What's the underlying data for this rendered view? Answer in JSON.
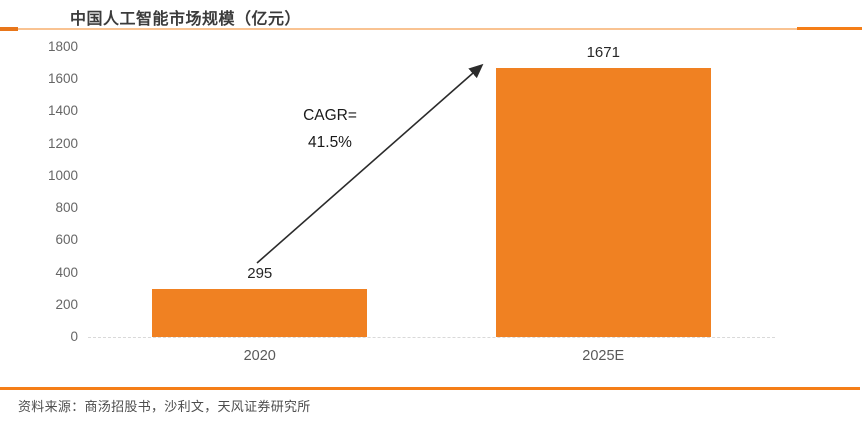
{
  "header": {
    "title": "中国人工智能市场规模（亿元）"
  },
  "chart_data": {
    "type": "bar",
    "title": "中国人工智能市场规模（亿元）",
    "categories": [
      "2020",
      "2025E"
    ],
    "values": [
      295,
      1671
    ],
    "bar_labels": [
      "295",
      "1671"
    ],
    "xlabel": "",
    "ylabel": "",
    "ylim": [
      0,
      1800
    ],
    "ytick_step": 200,
    "yticks": [
      1800,
      1600,
      1400,
      1200,
      1000,
      800,
      600,
      400,
      200,
      0
    ],
    "grid": false,
    "legend": "none",
    "bar_color": "#f08122",
    "annotation": {
      "line1": "CAGR=",
      "line2": "41.5%",
      "arrow": "from 2020 bar up-right to 2025E bar"
    }
  },
  "footer": {
    "source": "资料来源：商汤招股书，沙利文，天风证券研究所"
  },
  "colors": {
    "accent_orange": "#f08122",
    "rule_light_orange": "#f9c392",
    "rule_dark_orange": "#f57e17",
    "title_text": "#3b3b3b",
    "tick_text": "#666666",
    "source_text": "#4d4d4d",
    "baseline_gray": "#d9d9d9"
  }
}
